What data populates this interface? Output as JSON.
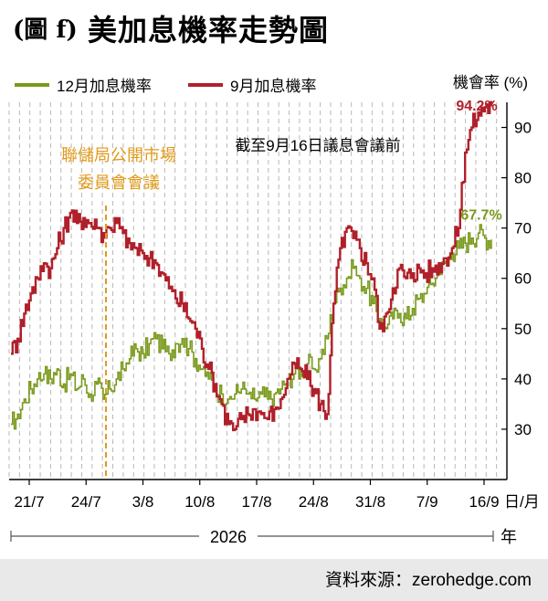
{
  "figure": {
    "label": "(圖 f)",
    "title": "美加息機率走勢圖",
    "source": "資料來源：zerohedge.com"
  },
  "chart_data": {
    "type": "line",
    "ylabel": "機會率 (%)",
    "xunit": "日/月",
    "year_label": "年",
    "year": "2026",
    "ylim": [
      20,
      95
    ],
    "yticks": [
      30,
      40,
      50,
      60,
      70,
      80,
      90
    ],
    "x_tick_labels": [
      "21/7",
      "24/7",
      "3/8",
      "10/8",
      "17/8",
      "24/8",
      "31/8",
      "7/9",
      "16/9"
    ],
    "grid": "vertical-dashed",
    "legend_position": "top-left",
    "annotations": {
      "fomc_meeting": "聯儲局公開市場\n委員會會議",
      "cutoff": "截至9月16日議息會議前",
      "dec_end_value": "67.7%",
      "sep_end_value": "94.2%"
    },
    "series": [
      {
        "name": "12月加息機率",
        "color": "#7a9a1c",
        "values": [
          31,
          33,
          36,
          38,
          40,
          41,
          40,
          42,
          39,
          41,
          38,
          40,
          37,
          39,
          36,
          38,
          40,
          42,
          44,
          46,
          45,
          47,
          48,
          46,
          45,
          47,
          48,
          46,
          44,
          42,
          40,
          38,
          37,
          36,
          37,
          38,
          37,
          36,
          37,
          36,
          37,
          38,
          40,
          41,
          42,
          43,
          42,
          44,
          48,
          55,
          58,
          60,
          62,
          60,
          58,
          55,
          52,
          50,
          52,
          53,
          52,
          54,
          56,
          57,
          59,
          61,
          63,
          65,
          66,
          67,
          68,
          69,
          68,
          67.7
        ]
      },
      {
        "name": "9月加息機率",
        "color": "#b0202a",
        "values": [
          45,
          48,
          53,
          57,
          60,
          63,
          62,
          66,
          70,
          73,
          71,
          72,
          71,
          70,
          69,
          70,
          71,
          69,
          67,
          66,
          65,
          64,
          63,
          61,
          58,
          56,
          55,
          52,
          50,
          46,
          42,
          39,
          35,
          31,
          30,
          32,
          33,
          34,
          33,
          32,
          34,
          36,
          40,
          43,
          42,
          40,
          38,
          35,
          33,
          55,
          66,
          70,
          68,
          66,
          63,
          60,
          50,
          53,
          58,
          62,
          60,
          61,
          62,
          61,
          62,
          63,
          64,
          66,
          70,
          85,
          90,
          93,
          94,
          94.2
        ]
      }
    ]
  }
}
